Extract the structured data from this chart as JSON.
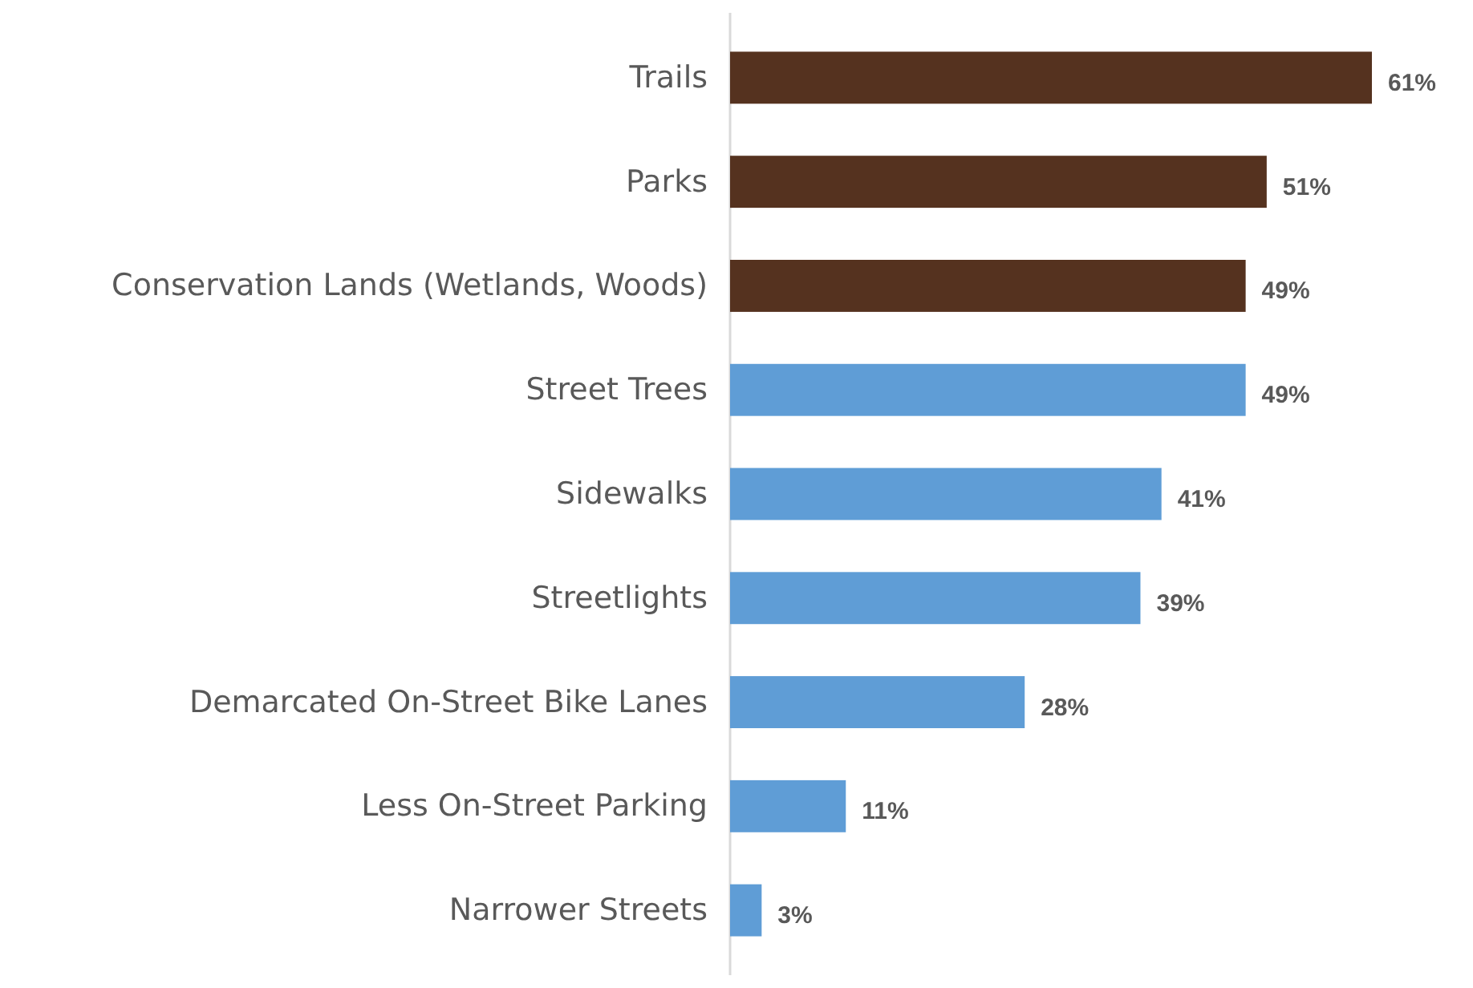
{
  "chart_data": {
    "type": "bar",
    "orientation": "horizontal",
    "categories": [
      "Trails",
      "Parks",
      "Conservation Lands (Wetlands, Woods)",
      "Street Trees",
      "Sidewalks",
      "Streetlights",
      "Demarcated On-Street Bike Lanes",
      "Less On-Street Parking",
      "Narrower Streets"
    ],
    "values": [
      61,
      51,
      49,
      49,
      41,
      39,
      28,
      11,
      3
    ],
    "colors": [
      "#55321f",
      "#55321f",
      "#55321f",
      "#5f9dd6",
      "#5f9dd6",
      "#5f9dd6",
      "#5f9dd6",
      "#5f9dd6",
      "#5f9dd6"
    ],
    "value_labels": [
      "61%",
      "51%",
      "49%",
      "49%",
      "41%",
      "39%",
      "28%",
      "11%",
      "3%"
    ]
  }
}
